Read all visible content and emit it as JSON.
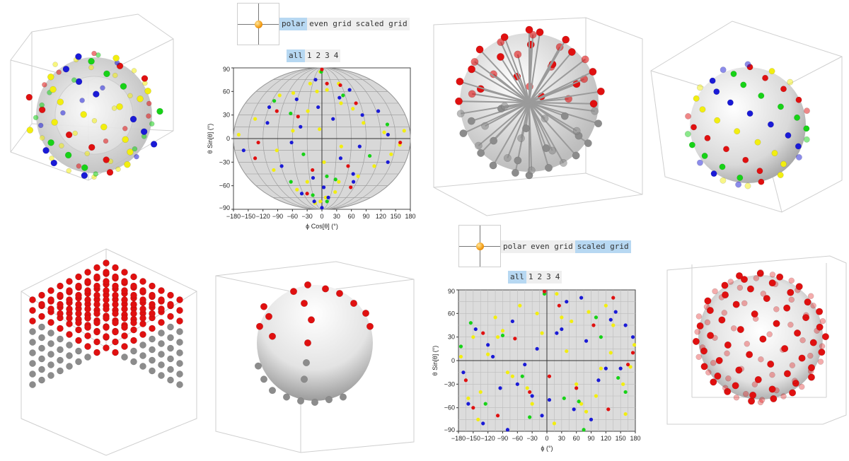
{
  "controls_top": {
    "modes": [
      "polar",
      "even grid",
      "scaled grid"
    ],
    "selected_mode": "polar",
    "sets": [
      "all",
      "1",
      "2",
      "3",
      "4"
    ],
    "selected_set": "all"
  },
  "controls_bottom": {
    "modes": [
      "polar",
      "even grid",
      "scaled grid"
    ],
    "selected_mode": "scaled grid",
    "sets": [
      "all",
      "1",
      "2",
      "3",
      "4"
    ],
    "selected_set": "all"
  },
  "colors": {
    "yellow": "#f2ee10",
    "blue": "#1a1ad6",
    "green": "#17d217",
    "red": "#e01010",
    "gray": "#8c8c8c",
    "accent": "#b7d8f2",
    "knob": "#f29a12"
  },
  "chart_data": [
    {
      "type": "scatter",
      "projection": "sinusoidal ellipse",
      "xlabel": "ϕ Cos[θ] (°)",
      "ylabel": "θ Sin[θ] (°)",
      "xticks": [
        "−180",
        "−150",
        "−120",
        "−90",
        "−60",
        "−30",
        "0",
        "30",
        "60",
        "90",
        "120",
        "150",
        "180"
      ],
      "yticks": [
        "90",
        "60",
        "30",
        "0",
        "−30",
        "−60",
        "−90"
      ],
      "xlim": [
        -180,
        180
      ],
      "ylim": [
        -90,
        90
      ],
      "series": [
        {
          "color": "yellow",
          "x": [
            -170,
            -150,
            -128,
            -110,
            -95,
            -70,
            -52,
            -35,
            -18,
            -5,
            5,
            22,
            40,
            55,
            72,
            90,
            110,
            128,
            150,
            170,
            -150,
            -120,
            -60,
            -20,
            30,
            80,
            130,
            160,
            -100,
            -40,
            60,
            100
          ],
          "y": [
            5,
            25,
            -40,
            58,
            -15,
            70,
            -55,
            35,
            -80,
            12,
            -30,
            62,
            -10,
            45,
            -68,
            20,
            -48,
            8,
            -20,
            10,
            55,
            -65,
            10,
            60,
            -75,
            38,
            -35,
            -8,
            -82,
            85,
            -55,
            70
          ]
        },
        {
          "color": "blue",
          "x": [
            -165,
            -140,
            -118,
            -100,
            -80,
            -62,
            -45,
            -28,
            -10,
            8,
            25,
            42,
            58,
            78,
            95,
            112,
            135,
            155,
            -120,
            -50,
            50,
            120,
            -90,
            0,
            90,
            140
          ],
          "y": [
            -15,
            40,
            20,
            -35,
            50,
            -5,
            15,
            -50,
            40,
            -62,
            25,
            -25,
            52,
            -10,
            30,
            -55,
            5,
            -30,
            -70,
            75,
            -75,
            62,
            -80,
            -88,
            -45,
            35
          ]
        },
        {
          "color": "green",
          "x": [
            -145,
            -110,
            -75,
            -40,
            -15,
            15,
            45,
            75,
            105,
            140,
            -60,
            60
          ],
          "y": [
            48,
            -55,
            32,
            -20,
            85,
            -48,
            -52,
            55,
            -22,
            18,
            -72,
            -80
          ]
        },
        {
          "color": "red",
          "x": [
            -150,
            -112,
            -88,
            -55,
            -25,
            0,
            30,
            65,
            98,
            125,
            160,
            -130,
            100
          ],
          "y": [
            -25,
            35,
            -70,
            28,
            -40,
            88,
            70,
            -35,
            45,
            -62,
            -5,
            -5,
            68
          ]
        }
      ]
    },
    {
      "type": "scatter",
      "projection": "equirectangular",
      "xlabel": "ϕ (°)",
      "ylabel": "θ Sin[θ] (°)",
      "xticks": [
        "−180",
        "−150",
        "−120",
        "−90",
        "−60",
        "−30",
        "0",
        "30",
        "60",
        "90",
        "120",
        "150",
        "180"
      ],
      "yticks": [
        "90",
        "60",
        "30",
        "0",
        "−30",
        "−60",
        "−90"
      ],
      "xlim": [
        -180,
        180
      ],
      "ylim": [
        -90,
        90
      ],
      "series": [
        {
          "color": "yellow",
          "x": [
            -175,
            -150,
            -135,
            -105,
            -80,
            -55,
            -30,
            -10,
            15,
            40,
            60,
            85,
            110,
            135,
            160,
            178,
            -160,
            -120,
            -70,
            -20,
            30,
            80,
            130,
            170,
            -140,
            -90,
            -40,
            20,
            70,
            120,
            155,
            -100,
            50,
            100
          ],
          "y": [
            5,
            30,
            -40,
            55,
            -15,
            70,
            -55,
            35,
            -80,
            12,
            -30,
            62,
            -10,
            45,
            -68,
            20,
            -48,
            8,
            -20,
            60,
            55,
            -65,
            10,
            -8,
            -75,
            38,
            -35,
            85,
            -55,
            70,
            -30,
            30,
            50,
            -45
          ]
        },
        {
          "color": "blue",
          "x": [
            -170,
            -145,
            -120,
            -95,
            -70,
            -45,
            -20,
            5,
            30,
            55,
            80,
            105,
            130,
            150,
            175,
            -160,
            -110,
            -60,
            -10,
            40,
            90,
            140,
            -130,
            -80,
            -30,
            20,
            70,
            120,
            160
          ],
          "y": [
            -15,
            40,
            20,
            -35,
            50,
            -5,
            15,
            -50,
            40,
            -62,
            25,
            -25,
            52,
            -10,
            30,
            -55,
            5,
            -30,
            -70,
            75,
            -75,
            62,
            -80,
            -88,
            -45,
            35,
            80,
            -10,
            45
          ]
        },
        {
          "color": "green",
          "x": [
            -155,
            -125,
            -90,
            -50,
            -5,
            35,
            65,
            100,
            145,
            -175,
            -35,
            75,
            110,
            160
          ],
          "y": [
            48,
            -55,
            32,
            -20,
            85,
            -48,
            -52,
            55,
            -22,
            18,
            -72,
            -88,
            30,
            -40
          ]
        },
        {
          "color": "red",
          "x": [
            -165,
            -130,
            -100,
            -65,
            -35,
            -5,
            25,
            60,
            95,
            125,
            165,
            -150,
            5,
            135,
            175
          ],
          "y": [
            -25,
            35,
            -70,
            28,
            -40,
            88,
            70,
            -35,
            45,
            -62,
            -5,
            -60,
            -20,
            80,
            10
          ]
        }
      ]
    }
  ]
}
